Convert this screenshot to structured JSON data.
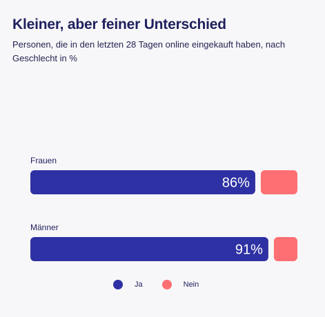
{
  "header": {
    "title": "Kleiner, aber feiner Unterschied",
    "subtitle": "Personen, die in den letzten 28 Tagen online eingekauft haben, nach Geschlecht in %"
  },
  "colors": {
    "ja": "#2e31a3",
    "nein": "#fd6f72",
    "label": "#20205f",
    "background": "#f7f7f9"
  },
  "chart_data": {
    "type": "bar",
    "orientation": "horizontal",
    "stacked": true,
    "title": "Kleiner, aber feiner Unterschied",
    "subtitle": "Personen, die in den letzten 28 Tagen online eingekauft haben, nach Geschlecht in %",
    "categories": [
      "Frauen",
      "Männer"
    ],
    "series": [
      {
        "name": "Ja",
        "values": [
          86,
          91
        ],
        "labels": [
          "86%",
          "91%"
        ]
      },
      {
        "name": "Nein",
        "values": [
          14,
          9
        ]
      }
    ],
    "xlim": [
      0,
      100
    ],
    "grid": false,
    "legend": "bottom-center"
  }
}
